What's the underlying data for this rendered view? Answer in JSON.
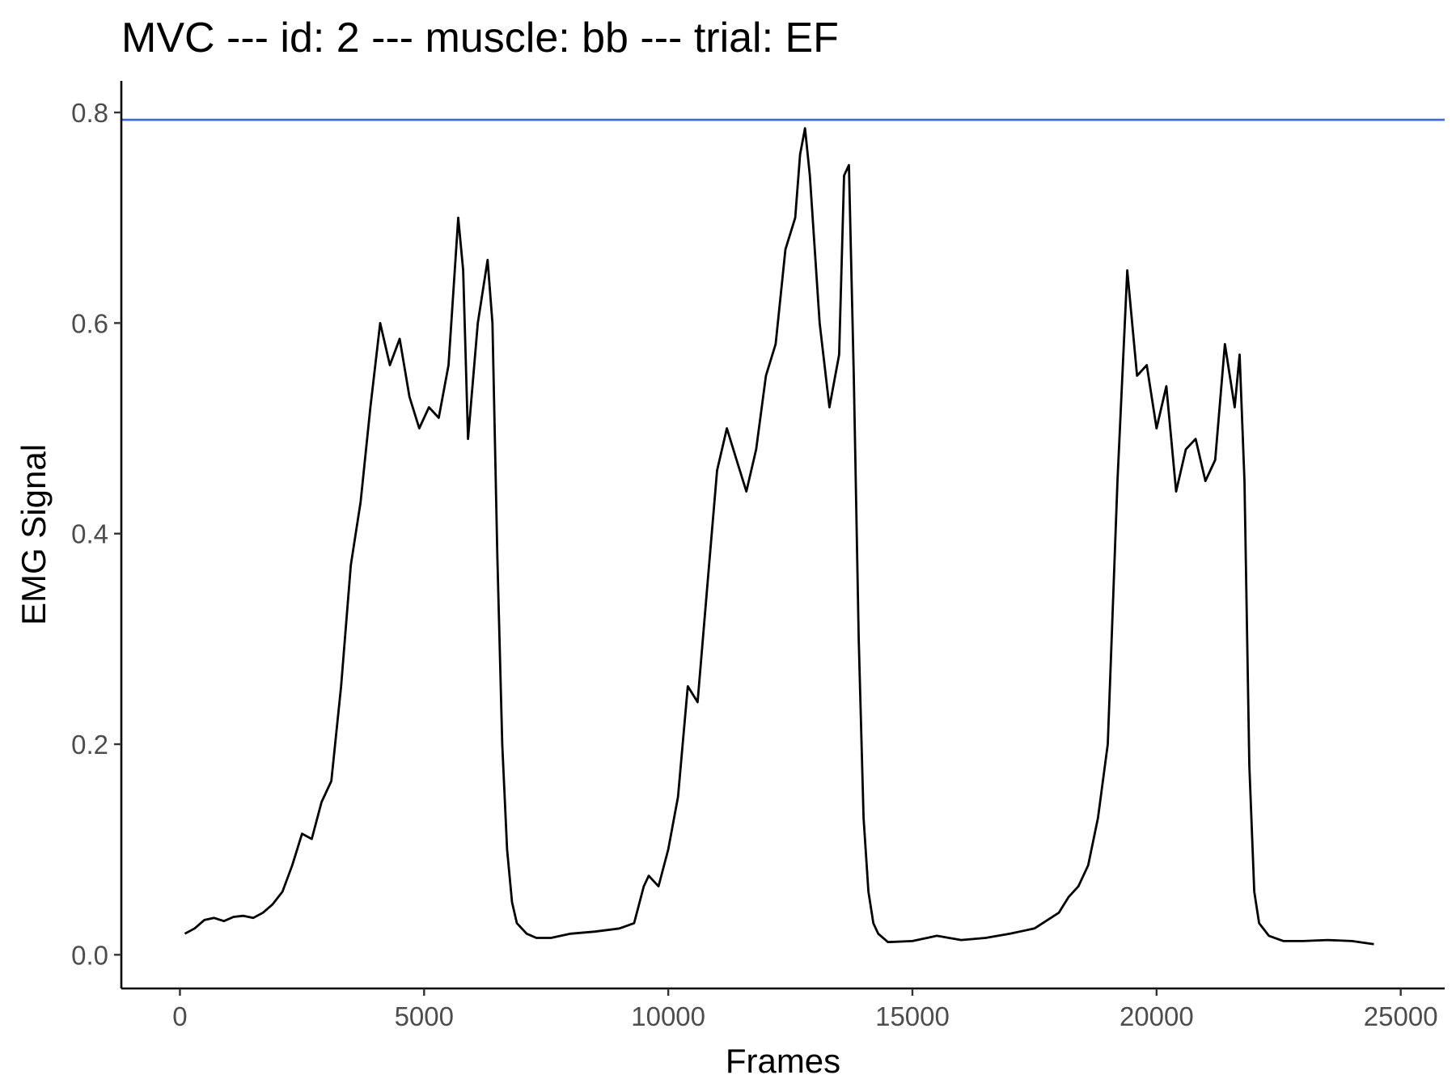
{
  "chart_data": {
    "type": "line",
    "title": "MVC --- id: 2 --- muscle: bb --- trial: EF",
    "xlabel": "Frames",
    "ylabel": "EMG Signal",
    "xlim": [
      -1200,
      25900
    ],
    "ylim": [
      -0.032,
      0.83
    ],
    "x_ticks": [
      0,
      5000,
      10000,
      15000,
      20000,
      25000
    ],
    "x_tick_labels": [
      "0",
      "5000",
      "10000",
      "15000",
      "20000",
      "25000"
    ],
    "y_ticks": [
      0.0,
      0.2,
      0.4,
      0.6,
      0.8
    ],
    "y_tick_labels": [
      "0.0",
      "0.2",
      "0.4",
      "0.6",
      "0.8"
    ],
    "grid": false,
    "legend": "none",
    "reference_line": {
      "orientation": "horizontal",
      "y": 0.793,
      "color": "#4169E1"
    },
    "series": [
      {
        "color": "#000000",
        "x": [
          100,
          300,
          500,
          700,
          900,
          1100,
          1300,
          1500,
          1700,
          1900,
          2100,
          2300,
          2500,
          2700,
          2900,
          3100,
          3300,
          3500,
          3700,
          3900,
          4100,
          4300,
          4500,
          4700,
          4900,
          5100,
          5300,
          5500,
          5700,
          5800,
          5900,
          6100,
          6300,
          6400,
          6500,
          6600,
          6700,
          6800,
          6900,
          7100,
          7300,
          7600,
          8000,
          8500,
          9000,
          9300,
          9500,
          9600,
          9800,
          10000,
          10200,
          10400,
          10600,
          10800,
          11000,
          11200,
          11400,
          11600,
          11800,
          12000,
          12200,
          12400,
          12600,
          12700,
          12800,
          12900,
          13100,
          13300,
          13500,
          13600,
          13700,
          13800,
          13900,
          14000,
          14100,
          14200,
          14300,
          14500,
          15000,
          15500,
          16000,
          16500,
          17000,
          17500,
          18000,
          18200,
          18400,
          18600,
          18800,
          19000,
          19200,
          19400,
          19600,
          19800,
          20000,
          20200,
          20400,
          20600,
          20800,
          21000,
          21200,
          21400,
          21600,
          21700,
          21800,
          21900,
          22000,
          22100,
          22300,
          22600,
          23000,
          23500,
          24000,
          24450
        ],
        "y": [
          0.02,
          0.025,
          0.033,
          0.035,
          0.032,
          0.036,
          0.037,
          0.035,
          0.04,
          0.048,
          0.06,
          0.085,
          0.115,
          0.11,
          0.145,
          0.165,
          0.255,
          0.37,
          0.43,
          0.52,
          0.6,
          0.56,
          0.585,
          0.53,
          0.5,
          0.52,
          0.51,
          0.56,
          0.7,
          0.65,
          0.49,
          0.6,
          0.66,
          0.6,
          0.38,
          0.2,
          0.1,
          0.05,
          0.03,
          0.02,
          0.016,
          0.016,
          0.02,
          0.022,
          0.025,
          0.03,
          0.065,
          0.075,
          0.065,
          0.1,
          0.15,
          0.255,
          0.24,
          0.35,
          0.46,
          0.5,
          0.47,
          0.44,
          0.48,
          0.55,
          0.58,
          0.67,
          0.7,
          0.76,
          0.785,
          0.74,
          0.6,
          0.52,
          0.57,
          0.74,
          0.75,
          0.55,
          0.3,
          0.13,
          0.06,
          0.03,
          0.02,
          0.012,
          0.013,
          0.018,
          0.014,
          0.016,
          0.02,
          0.025,
          0.04,
          0.055,
          0.065,
          0.085,
          0.13,
          0.2,
          0.45,
          0.65,
          0.55,
          0.56,
          0.5,
          0.54,
          0.44,
          0.48,
          0.49,
          0.45,
          0.47,
          0.58,
          0.52,
          0.57,
          0.45,
          0.18,
          0.06,
          0.03,
          0.018,
          0.013,
          0.013,
          0.014,
          0.013,
          0.01
        ]
      }
    ]
  }
}
